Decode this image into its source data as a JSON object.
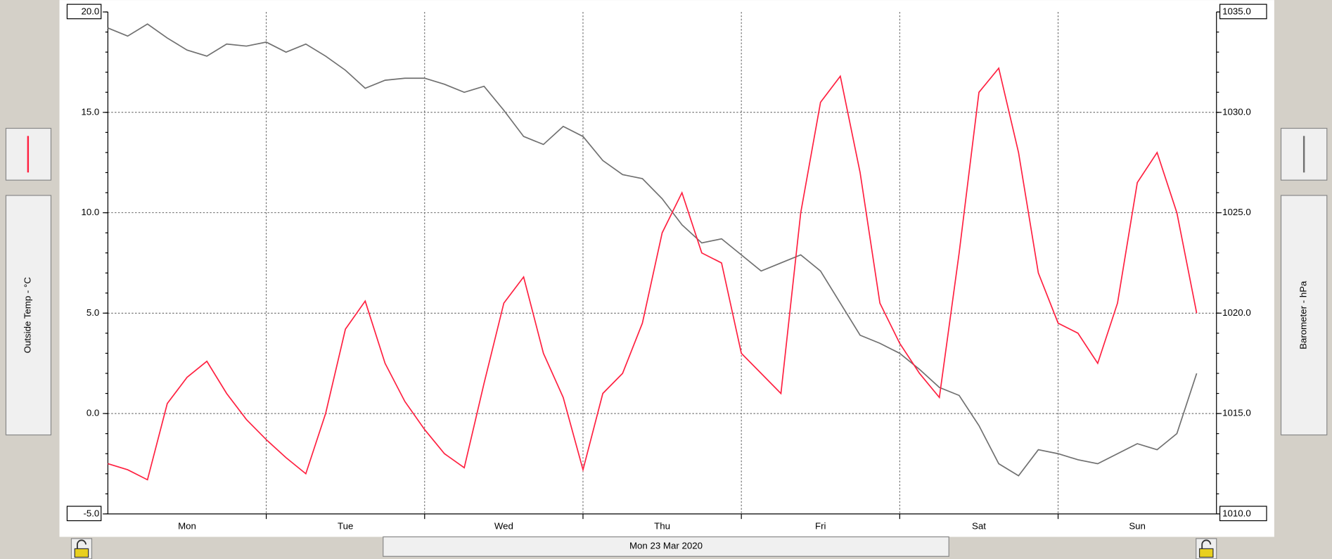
{
  "chart_data": {
    "type": "line",
    "ylabel": "Outside Temp - °C",
    "y2label": "Barometer - hPa",
    "date_label": "Mon 23 Mar 2020",
    "categories": [
      null,
      null,
      null,
      null,
      "Mon",
      null,
      null,
      null,
      null,
      null,
      null,
      null,
      "Tue",
      null,
      null,
      null,
      null,
      null,
      null,
      null,
      "Wed",
      null,
      null,
      null,
      null,
      null,
      null,
      null,
      "Thu",
      null,
      null,
      null,
      null,
      null,
      null,
      null,
      "Fri",
      null,
      null,
      null,
      null,
      null,
      null,
      null,
      "Sat",
      null,
      null,
      null,
      null,
      null,
      null,
      null,
      "Sun",
      null,
      null,
      null
    ],
    "ylim": [
      -5,
      20
    ],
    "yticks": [
      {
        "value": -5,
        "label": "-5.0"
      },
      {
        "value": 0,
        "label": "0.0"
      },
      {
        "value": 5,
        "label": "5.0"
      },
      {
        "value": 10,
        "label": "10.0"
      },
      {
        "value": 15,
        "label": "15.0"
      },
      {
        "value": 20,
        "label": "20.0"
      }
    ],
    "y2lim": [
      1010,
      1035
    ],
    "y2ticks": [
      {
        "value": 1010,
        "label": "1010.0"
      },
      {
        "value": 1015,
        "label": "1015.0"
      },
      {
        "value": 1020,
        "label": "1020.0"
      },
      {
        "value": 1025,
        "label": "1025.0"
      },
      {
        "value": 1030,
        "label": "1030.0"
      },
      {
        "value": 1035,
        "label": "1035.0"
      }
    ],
    "grid": true,
    "series": [
      {
        "color": "#ff2040",
        "values": [
          -2.5,
          -2.8,
          -3.3,
          0.5,
          1.8,
          2.6,
          1.0,
          -0.3,
          -1.3,
          -2.2,
          -3.0,
          0.0,
          4.2,
          5.6,
          2.5,
          0.6,
          -0.8,
          -2.0,
          -2.7,
          1.5,
          5.5,
          6.8,
          3.0,
          0.8,
          -2.8,
          1.0,
          2.0,
          4.5,
          9.0,
          11.0,
          8.0,
          7.5,
          3.0,
          2.0,
          1.0,
          10.0,
          15.5,
          16.8,
          12.0,
          5.5,
          3.5,
          2.0,
          0.8,
          8.0,
          16.0,
          17.2,
          13.0,
          7.0,
          4.5,
          4.0,
          2.5,
          5.5,
          11.5,
          13.0,
          10.0,
          5.0
        ]
      },
      {
        "color": "#707070",
        "axis": "y2",
        "values": [
          1034.2,
          1033.8,
          1034.4,
          1033.7,
          1033.1,
          1032.8,
          1033.4,
          1033.3,
          1033.5,
          1033.0,
          1033.4,
          1032.8,
          1032.1,
          1031.2,
          1031.6,
          1031.7,
          1031.7,
          1031.4,
          1031.0,
          1031.3,
          1030.1,
          1028.8,
          1028.4,
          1029.3,
          1028.8,
          1027.6,
          1026.9,
          1026.7,
          1025.7,
          1024.4,
          1023.5,
          1023.7,
          1022.9,
          1022.1,
          1022.5,
          1022.9,
          1022.1,
          1020.5,
          1018.9,
          1018.5,
          1018.0,
          1017.2,
          1016.3,
          1015.9,
          1014.4,
          1012.5,
          1011.9,
          1013.2,
          1013.0,
          1012.7,
          1012.5,
          1013.0,
          1013.5,
          1013.2,
          1014.0,
          1017.0
        ]
      }
    ]
  }
}
